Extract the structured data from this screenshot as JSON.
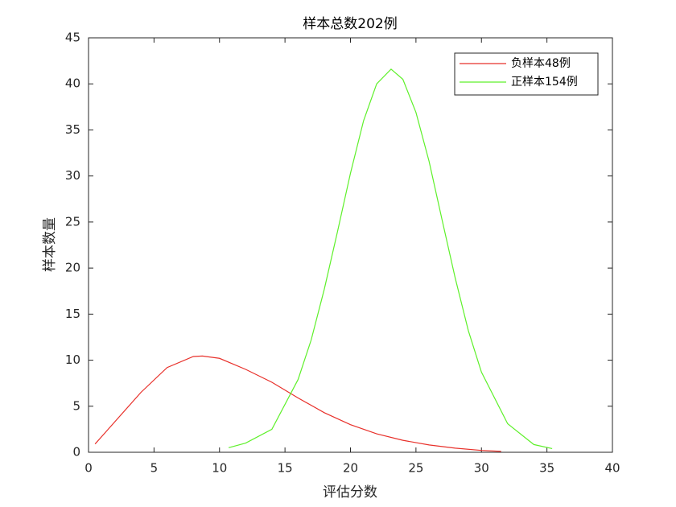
{
  "chart_data": {
    "type": "line",
    "title": "样本总数202例",
    "xlabel": "评估分数",
    "ylabel": "样本数量",
    "xlim": [
      0,
      40
    ],
    "xticks": [
      0,
      5,
      10,
      15,
      20,
      25,
      30,
      35,
      40
    ],
    "ylim": [
      0,
      45
    ],
    "yticks": [
      0,
      5,
      10,
      15,
      20,
      25,
      30,
      35,
      40,
      45
    ],
    "legend_position": "upper right",
    "series": [
      {
        "name": "负样本48例",
        "color": "#e8302a",
        "x": [
          0.5,
          2,
          4,
          6,
          8,
          8.7,
          10,
          12,
          14,
          16,
          18,
          20,
          22,
          24,
          26,
          28,
          30,
          31.5
        ],
        "values": [
          0.9,
          3.3,
          6.5,
          9.2,
          10.4,
          10.45,
          10.2,
          9.0,
          7.6,
          5.9,
          4.3,
          3.0,
          2.0,
          1.3,
          0.8,
          0.45,
          0.2,
          0.1
        ]
      },
      {
        "name": "正样本154例",
        "color": "#5ef02a",
        "x": [
          10.7,
          12,
          14,
          16,
          17,
          18,
          19,
          20,
          21,
          22,
          23.1,
          24,
          25,
          26,
          27,
          28,
          29,
          30,
          32,
          34,
          35.4
        ],
        "values": [
          0.5,
          1.0,
          2.5,
          7.9,
          12.2,
          17.7,
          23.9,
          30.3,
          36.0,
          40.0,
          41.6,
          40.5,
          36.9,
          31.6,
          25.2,
          18.9,
          13.2,
          8.7,
          3.1,
          0.84,
          0.4
        ]
      }
    ]
  }
}
